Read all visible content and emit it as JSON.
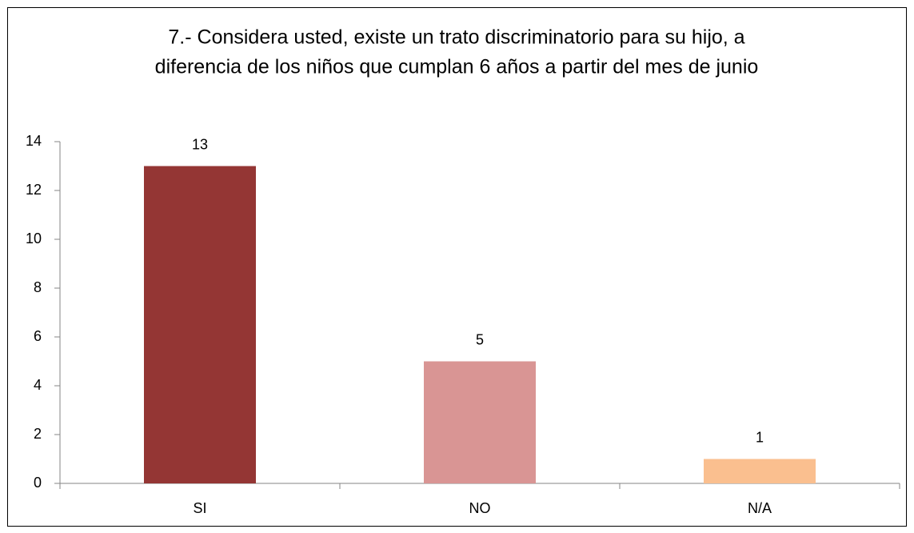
{
  "chart_data": {
    "type": "bar",
    "title": [
      "7.- Considera usted, existe un trato discriminatorio para su hijo, a",
      "diferencia de los niños que cumplan 6 años a partir del mes de junio"
    ],
    "categories": [
      "SI",
      "NO",
      "N/A"
    ],
    "values": [
      13,
      5,
      1
    ],
    "colors": [
      "#943634",
      "#d99594",
      "#fabf8f"
    ],
    "ylim": [
      0,
      14
    ],
    "yticks": [
      0,
      2,
      4,
      6,
      8,
      10,
      12,
      14
    ],
    "grid": false,
    "data_labels": true
  }
}
